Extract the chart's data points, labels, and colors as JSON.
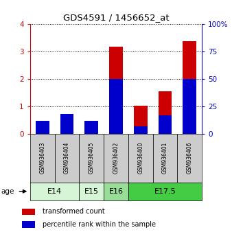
{
  "title": "GDS4591 / 1456652_at",
  "samples": [
    "GSM936403",
    "GSM936404",
    "GSM936405",
    "GSM936402",
    "GSM936400",
    "GSM936401",
    "GSM936406"
  ],
  "transformed_counts": [
    0.45,
    0.62,
    0.38,
    3.18,
    1.02,
    1.55,
    3.38
  ],
  "percentile_ranks": [
    12,
    18,
    12,
    50,
    7,
    17,
    50
  ],
  "age_groups": [
    {
      "label": "E14",
      "start": 0,
      "end": 2,
      "color": "#d6f5d6"
    },
    {
      "label": "E15",
      "start": 2,
      "end": 3,
      "color": "#d6f5d6"
    },
    {
      "label": "E16",
      "start": 3,
      "end": 4,
      "color": "#99dd99"
    },
    {
      "label": "E17.5",
      "start": 4,
      "end": 7,
      "color": "#44cc44"
    }
  ],
  "ylim_left": [
    0,
    4
  ],
  "ylim_right": [
    0,
    100
  ],
  "yticks_left": [
    0,
    1,
    2,
    3,
    4
  ],
  "yticks_right": [
    0,
    25,
    50,
    75,
    100
  ],
  "bar_color_red": "#cc0000",
  "bar_color_blue": "#0000cc",
  "bar_width": 0.55,
  "sample_box_color": "#cccccc",
  "left_axis_color": "#cc0000",
  "right_axis_color": "#0000cc",
  "legend_red_label": "transformed count",
  "legend_blue_label": "percentile rank within the sample"
}
